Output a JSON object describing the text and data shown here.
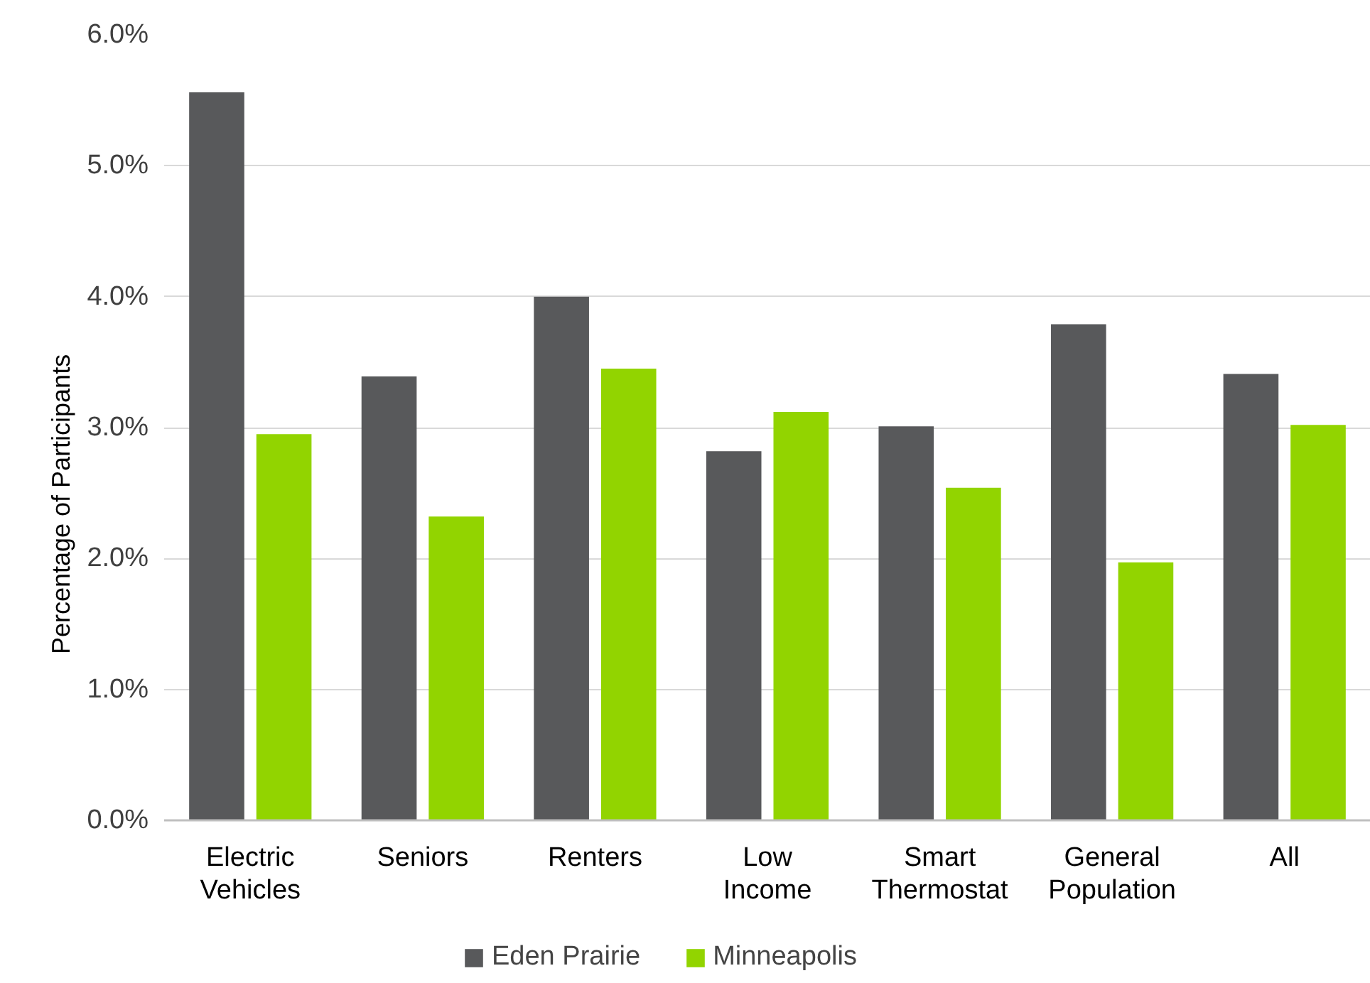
{
  "chart_data": {
    "type": "bar",
    "ylabel": "Percentage of Participants",
    "categories": [
      "Electric Vehicles",
      "Seniors",
      "Renters",
      "Low Income",
      "Smart Thermostat",
      "General Population",
      "All"
    ],
    "series": [
      {
        "name": "Eden Prairie",
        "color": "#58595b",
        "values": [
          5.56,
          3.39,
          4.0,
          2.82,
          3.01,
          3.79,
          3.41
        ]
      },
      {
        "name": "Minneapolis",
        "color": "#92d400",
        "values": [
          2.95,
          2.32,
          3.45,
          3.12,
          2.54,
          1.97,
          3.02
        ]
      }
    ],
    "ylim": [
      0,
      6
    ],
    "yticks": [
      {
        "value": 0,
        "label": "0.0%"
      },
      {
        "value": 1,
        "label": "1.0%"
      },
      {
        "value": 2,
        "label": "2.0%"
      },
      {
        "value": 3,
        "label": "3.0%"
      },
      {
        "value": 4,
        "label": "4.0%"
      },
      {
        "value": 5,
        "label": "5.0%"
      },
      {
        "value": 6,
        "label": "6.0%"
      }
    ],
    "grid": "y",
    "legend": "bottom"
  }
}
